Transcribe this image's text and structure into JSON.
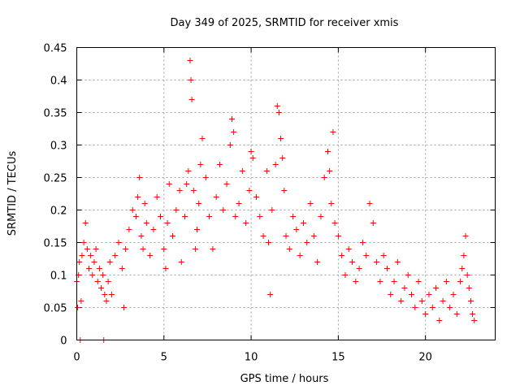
{
  "chart_data": {
    "type": "scatter",
    "title": "Day 349 of 2025, SRMTID for receiver xmis",
    "xlabel": "GPS time / hours",
    "ylabel": "SRMTID / TECUs",
    "xlim": [
      0,
      24.0
    ],
    "ylim": [
      0,
      0.45
    ],
    "xticks": [
      0,
      5,
      10,
      15,
      20
    ],
    "xtick_labels": [
      "0",
      "5",
      "10",
      "15",
      "20"
    ],
    "yticks": [
      0,
      0.05,
      0.1,
      0.15,
      0.2,
      0.25,
      0.3,
      0.35,
      0.4,
      0.45
    ],
    "ytick_labels": [
      "0",
      "0.05",
      "0.1",
      "0.15",
      "0.2",
      "0.25",
      "0.3",
      "0.35",
      "0.4",
      "0.45"
    ],
    "grid": true,
    "marker": "+",
    "color": "#ff0000",
    "series": [
      {
        "name": "SRMTID",
        "points": [
          [
            0.0,
            0.09
          ],
          [
            0.05,
            0.05
          ],
          [
            0.1,
            0.1
          ],
          [
            0.15,
            0.12
          ],
          [
            0.2,
            0.0
          ],
          [
            0.25,
            0.06
          ],
          [
            0.3,
            0.13
          ],
          [
            0.4,
            0.15
          ],
          [
            0.5,
            0.18
          ],
          [
            0.6,
            0.14
          ],
          [
            0.7,
            0.11
          ],
          [
            0.8,
            0.13
          ],
          [
            0.9,
            0.1
          ],
          [
            1.0,
            0.12
          ],
          [
            1.1,
            0.14
          ],
          [
            1.2,
            0.09
          ],
          [
            1.3,
            0.11
          ],
          [
            1.4,
            0.08
          ],
          [
            1.5,
            0.1
          ],
          [
            1.55,
            0.0
          ],
          [
            1.6,
            0.07
          ],
          [
            1.7,
            0.06
          ],
          [
            1.8,
            0.09
          ],
          [
            1.9,
            0.12
          ],
          [
            2.0,
            0.07
          ],
          [
            2.2,
            0.13
          ],
          [
            2.4,
            0.15
          ],
          [
            2.6,
            0.11
          ],
          [
            2.7,
            0.05
          ],
          [
            2.8,
            0.14
          ],
          [
            3.0,
            0.17
          ],
          [
            3.2,
            0.2
          ],
          [
            3.4,
            0.19
          ],
          [
            3.5,
            0.22
          ],
          [
            3.6,
            0.25
          ],
          [
            3.7,
            0.16
          ],
          [
            3.8,
            0.14
          ],
          [
            3.9,
            0.21
          ],
          [
            4.0,
            0.18
          ],
          [
            4.2,
            0.13
          ],
          [
            4.4,
            0.17
          ],
          [
            4.6,
            0.22
          ],
          [
            4.8,
            0.19
          ],
          [
            5.0,
            0.14
          ],
          [
            5.1,
            0.11
          ],
          [
            5.2,
            0.18
          ],
          [
            5.3,
            0.24
          ],
          [
            5.5,
            0.16
          ],
          [
            5.7,
            0.2
          ],
          [
            5.9,
            0.23
          ],
          [
            6.0,
            0.12
          ],
          [
            6.2,
            0.19
          ],
          [
            6.3,
            0.24
          ],
          [
            6.4,
            0.26
          ],
          [
            6.5,
            0.43
          ],
          [
            6.55,
            0.4
          ],
          [
            6.6,
            0.37
          ],
          [
            6.7,
            0.23
          ],
          [
            6.8,
            0.14
          ],
          [
            6.9,
            0.17
          ],
          [
            7.0,
            0.21
          ],
          [
            7.1,
            0.27
          ],
          [
            7.2,
            0.31
          ],
          [
            7.4,
            0.25
          ],
          [
            7.6,
            0.19
          ],
          [
            7.8,
            0.14
          ],
          [
            8.0,
            0.22
          ],
          [
            8.2,
            0.27
          ],
          [
            8.4,
            0.2
          ],
          [
            8.6,
            0.24
          ],
          [
            8.8,
            0.3
          ],
          [
            8.9,
            0.34
          ],
          [
            9.0,
            0.32
          ],
          [
            9.1,
            0.19
          ],
          [
            9.3,
            0.21
          ],
          [
            9.5,
            0.26
          ],
          [
            9.7,
            0.18
          ],
          [
            9.9,
            0.23
          ],
          [
            10.0,
            0.29
          ],
          [
            10.1,
            0.28
          ],
          [
            10.3,
            0.22
          ],
          [
            10.5,
            0.19
          ],
          [
            10.7,
            0.16
          ],
          [
            10.9,
            0.26
          ],
          [
            11.0,
            0.15
          ],
          [
            11.1,
            0.07
          ],
          [
            11.2,
            0.2
          ],
          [
            11.4,
            0.27
          ],
          [
            11.5,
            0.36
          ],
          [
            11.6,
            0.35
          ],
          [
            11.7,
            0.31
          ],
          [
            11.8,
            0.28
          ],
          [
            11.9,
            0.23
          ],
          [
            12.0,
            0.16
          ],
          [
            12.2,
            0.14
          ],
          [
            12.4,
            0.19
          ],
          [
            12.6,
            0.17
          ],
          [
            12.8,
            0.13
          ],
          [
            13.0,
            0.18
          ],
          [
            13.2,
            0.15
          ],
          [
            13.4,
            0.21
          ],
          [
            13.6,
            0.16
          ],
          [
            13.8,
            0.12
          ],
          [
            14.0,
            0.19
          ],
          [
            14.2,
            0.25
          ],
          [
            14.4,
            0.29
          ],
          [
            14.5,
            0.26
          ],
          [
            14.6,
            0.21
          ],
          [
            14.7,
            0.32
          ],
          [
            14.8,
            0.18
          ],
          [
            15.0,
            0.16
          ],
          [
            15.2,
            0.13
          ],
          [
            15.4,
            0.1
          ],
          [
            15.6,
            0.14
          ],
          [
            15.8,
            0.12
          ],
          [
            16.0,
            0.09
          ],
          [
            16.2,
            0.11
          ],
          [
            16.4,
            0.15
          ],
          [
            16.6,
            0.13
          ],
          [
            16.8,
            0.21
          ],
          [
            17.0,
            0.18
          ],
          [
            17.2,
            0.12
          ],
          [
            17.4,
            0.09
          ],
          [
            17.6,
            0.13
          ],
          [
            17.8,
            0.11
          ],
          [
            18.0,
            0.07
          ],
          [
            18.2,
            0.09
          ],
          [
            18.4,
            0.12
          ],
          [
            18.6,
            0.06
          ],
          [
            18.8,
            0.08
          ],
          [
            19.0,
            0.1
          ],
          [
            19.2,
            0.07
          ],
          [
            19.4,
            0.05
          ],
          [
            19.6,
            0.09
          ],
          [
            19.8,
            0.06
          ],
          [
            20.0,
            0.04
          ],
          [
            20.2,
            0.07
          ],
          [
            20.4,
            0.05
          ],
          [
            20.6,
            0.08
          ],
          [
            20.8,
            0.03
          ],
          [
            21.0,
            0.06
          ],
          [
            21.2,
            0.09
          ],
          [
            21.4,
            0.05
          ],
          [
            21.6,
            0.07
          ],
          [
            21.8,
            0.04
          ],
          [
            22.0,
            0.09
          ],
          [
            22.1,
            0.11
          ],
          [
            22.2,
            0.13
          ],
          [
            22.3,
            0.16
          ],
          [
            22.4,
            0.1
          ],
          [
            22.5,
            0.08
          ],
          [
            22.6,
            0.06
          ],
          [
            22.7,
            0.04
          ],
          [
            22.8,
            0.03
          ]
        ]
      }
    ]
  }
}
